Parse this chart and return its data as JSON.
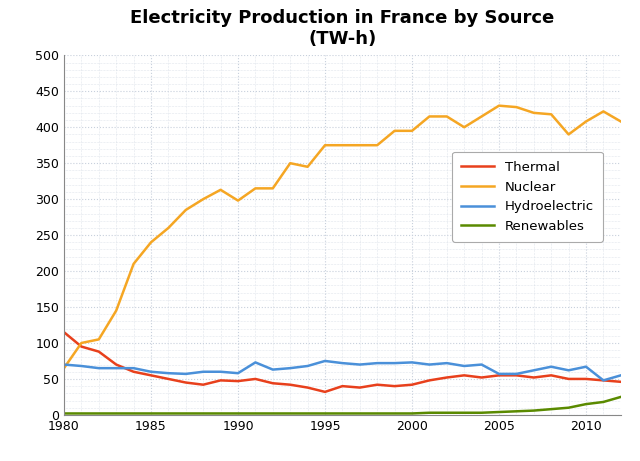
{
  "title": "Electricity Production in France by Source\n(TW-h)",
  "years": [
    1980,
    1981,
    1982,
    1983,
    1984,
    1985,
    1986,
    1987,
    1988,
    1989,
    1990,
    1991,
    1992,
    1993,
    1994,
    1995,
    1996,
    1997,
    1998,
    1999,
    2000,
    2001,
    2002,
    2003,
    2004,
    2005,
    2006,
    2007,
    2008,
    2009,
    2010,
    2011,
    2012
  ],
  "thermal": [
    115,
    95,
    88,
    70,
    60,
    55,
    50,
    45,
    42,
    48,
    47,
    50,
    44,
    42,
    38,
    32,
    40,
    38,
    42,
    40,
    42,
    48,
    52,
    55,
    52,
    55,
    55,
    52,
    55,
    50,
    50,
    48,
    46
  ],
  "nuclear": [
    65,
    100,
    105,
    145,
    210,
    240,
    260,
    285,
    300,
    313,
    298,
    315,
    315,
    350,
    345,
    375,
    375,
    375,
    375,
    395,
    395,
    415,
    415,
    400,
    415,
    430,
    428,
    420,
    418,
    390,
    408,
    422,
    408
  ],
  "hydro": [
    70,
    68,
    65,
    65,
    65,
    60,
    58,
    57,
    60,
    60,
    58,
    73,
    63,
    65,
    68,
    75,
    72,
    70,
    72,
    72,
    73,
    70,
    72,
    68,
    70,
    57,
    57,
    62,
    67,
    62,
    67,
    48,
    55
  ],
  "renewables": [
    2,
    2,
    2,
    2,
    2,
    2,
    2,
    2,
    2,
    2,
    2,
    2,
    2,
    2,
    2,
    2,
    2,
    2,
    2,
    2,
    2,
    3,
    3,
    3,
    3,
    4,
    5,
    6,
    8,
    10,
    15,
    18,
    25
  ],
  "thermal_color": "#e8401c",
  "nuclear_color": "#f5a623",
  "hydro_color": "#4a90d9",
  "renewables_color": "#5a8a00",
  "bg_color": "#ffffff",
  "grid_color": "#c8d0dc",
  "ylim": [
    0,
    500
  ],
  "yticks": [
    0,
    50,
    100,
    150,
    200,
    250,
    300,
    350,
    400,
    450,
    500
  ],
  "xlim": [
    1980,
    2012
  ],
  "xticks": [
    1980,
    1985,
    1990,
    1995,
    2000,
    2005,
    2010
  ],
  "linewidth": 1.8,
  "title_fontsize": 13,
  "tick_fontsize": 9
}
